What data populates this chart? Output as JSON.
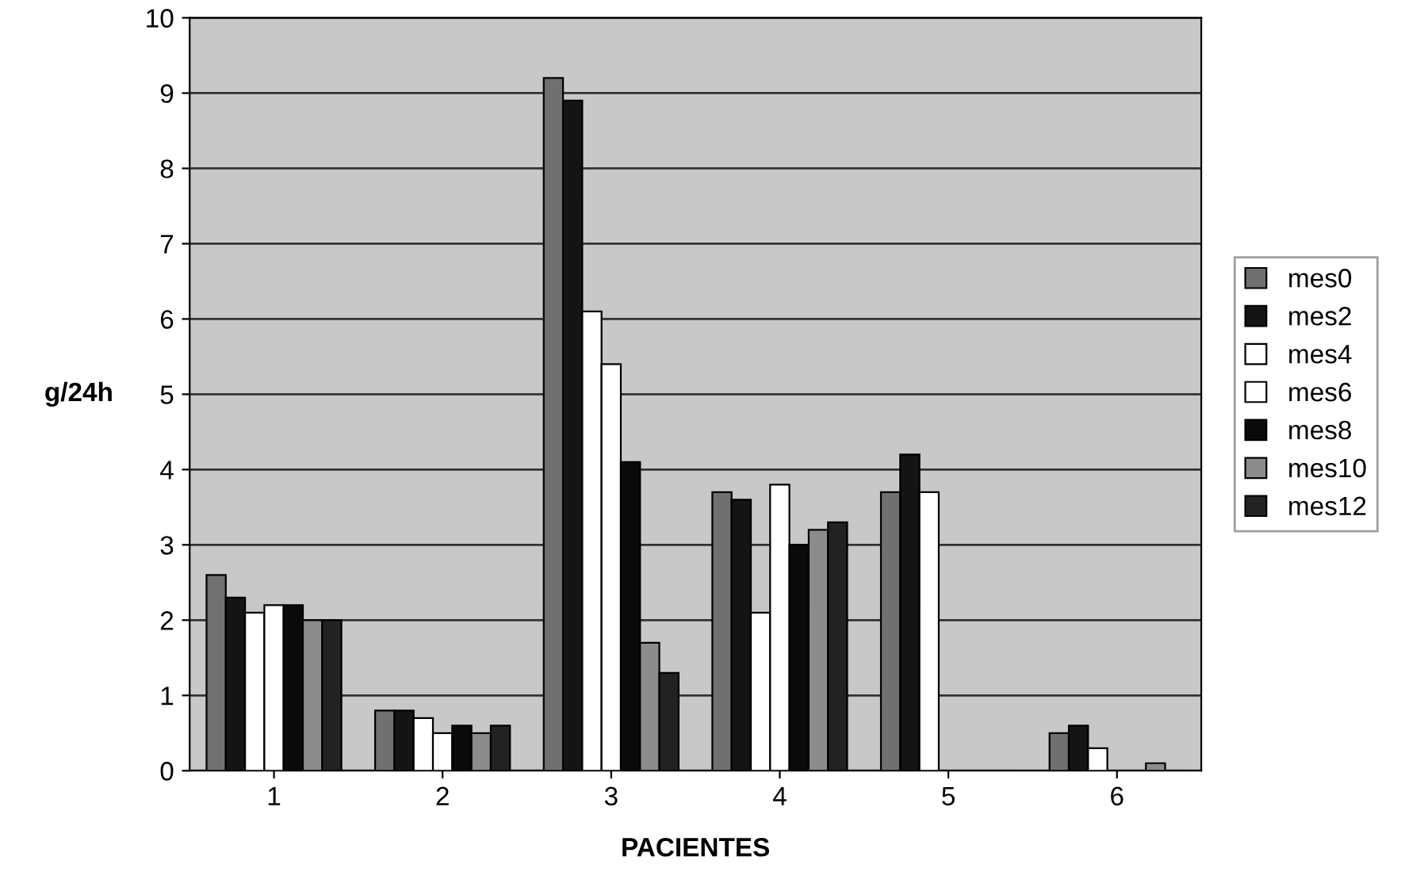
{
  "chart_data": {
    "type": "bar",
    "xlabel": "PACIENTES",
    "ylabel": "g/24h",
    "categories": [
      "1",
      "2",
      "3",
      "4",
      "5",
      "6"
    ],
    "series": [
      {
        "name": "mes0",
        "color": "#707070",
        "values": [
          2.6,
          0.8,
          9.2,
          3.7,
          3.7,
          0.5
        ]
      },
      {
        "name": "mes2",
        "color": "#141414",
        "values": [
          2.3,
          0.8,
          8.9,
          3.6,
          4.2,
          0.6
        ]
      },
      {
        "name": "mes4",
        "color": "#ffffff",
        "values": [
          2.1,
          0.7,
          6.1,
          2.1,
          3.7,
          0.3
        ]
      },
      {
        "name": "mes6",
        "color": "#ffffff",
        "values": [
          2.2,
          0.5,
          5.4,
          3.8,
          0.0,
          0.0
        ]
      },
      {
        "name": "mes8",
        "color": "#0a0a0a",
        "values": [
          2.2,
          0.6,
          4.1,
          3.0,
          0.0,
          0.0
        ]
      },
      {
        "name": "mes10",
        "color": "#8c8c8c",
        "values": [
          2.0,
          0.5,
          1.7,
          3.2,
          0.0,
          0.1
        ]
      },
      {
        "name": "mes12",
        "color": "#222222",
        "values": [
          2.0,
          0.6,
          1.3,
          3.3,
          0.0,
          0.0
        ]
      }
    ],
    "ylim": [
      0,
      10
    ],
    "yticks": [
      0,
      1,
      2,
      3,
      4,
      5,
      6,
      7,
      8,
      9,
      10
    ],
    "grid": "y",
    "legend": "right"
  }
}
